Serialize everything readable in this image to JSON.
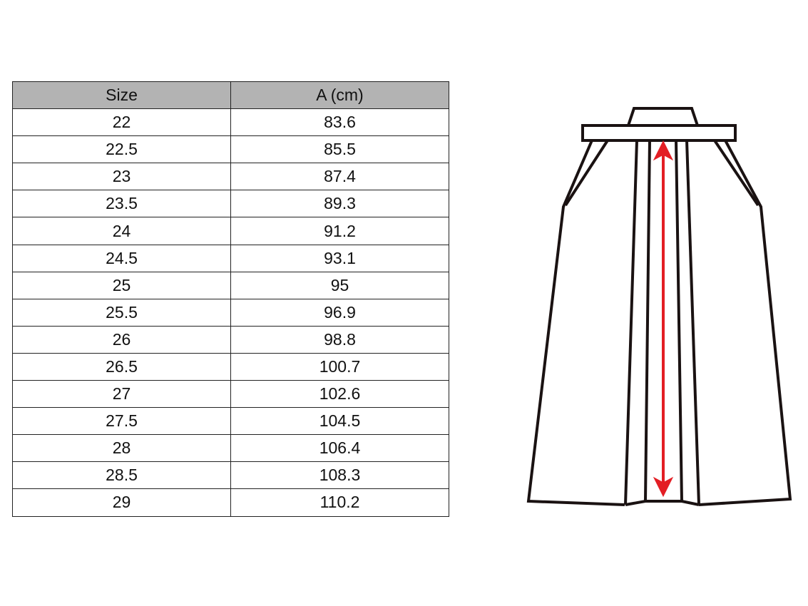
{
  "table": {
    "headers": [
      "Size",
      "A (cm)"
    ],
    "rows": [
      [
        "22",
        "83.6"
      ],
      [
        "22.5",
        "85.5"
      ],
      [
        "23",
        "87.4"
      ],
      [
        "23.5",
        "89.3"
      ],
      [
        "24",
        "91.2"
      ],
      [
        "24.5",
        "93.1"
      ],
      [
        "25",
        "95"
      ],
      [
        "25.5",
        "96.9"
      ],
      [
        "26",
        "98.8"
      ],
      [
        "26.5",
        "100.7"
      ],
      [
        "27",
        "102.6"
      ],
      [
        "27.5",
        "104.5"
      ],
      [
        "28",
        "106.4"
      ],
      [
        "28.5",
        "108.3"
      ],
      [
        "29",
        "110.2"
      ]
    ]
  },
  "diagram": {
    "subject": "hakama garment outline",
    "measurement_arrow_color": "#e31e24",
    "outline_color": "#1a1212"
  }
}
